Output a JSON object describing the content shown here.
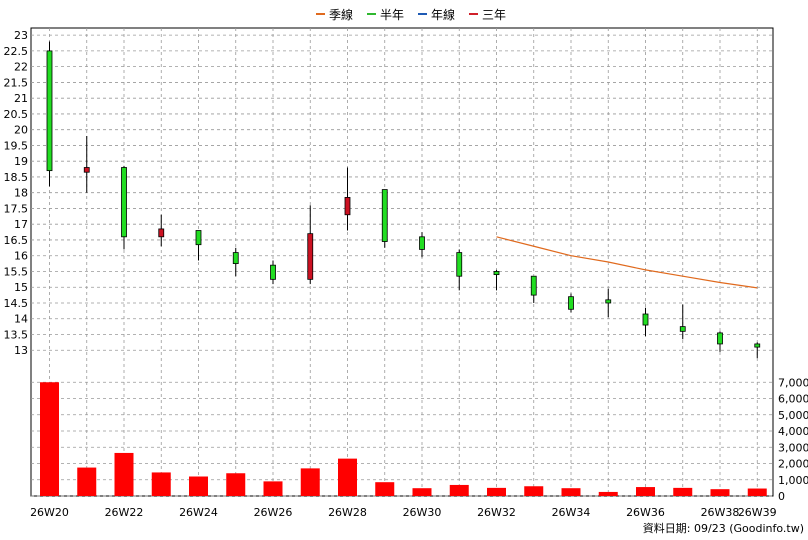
{
  "legend": [
    {
      "name": "季線",
      "color": "#e06a1e"
    },
    {
      "name": "半年",
      "color": "#2fb82f"
    },
    {
      "name": "年線",
      "color": "#1e5ab4"
    },
    {
      "name": "三年",
      "color": "#d0202a"
    }
  ],
  "source_text": "資料日期: 09/23  (Goodinfo.tw)",
  "chart_data": {
    "type": "candlestick",
    "grid": true,
    "legend_position": "top-center",
    "price_axis": {
      "ylim": [
        12.5,
        23.1
      ],
      "ticks": [
        "13",
        "13.5",
        "14",
        "14.5",
        "15",
        "15.5",
        "16",
        "16.5",
        "17",
        "17.5",
        "18",
        "18.5",
        "19",
        "19.5",
        "20",
        "20.5",
        "21",
        "21.5",
        "22",
        "22.5",
        "23"
      ]
    },
    "volume_axis": {
      "ylim": [
        0,
        7200
      ],
      "ticks": [
        "0",
        "1,000",
        "2,000",
        "3,000",
        "4,000",
        "5,000",
        "6,000",
        "7,000"
      ]
    },
    "x_tick_labels": [
      "26W20",
      "26W22",
      "26W24",
      "26W26",
      "26W28",
      "26W30",
      "26W32",
      "26W34",
      "26W36",
      "26W38",
      "26W39"
    ],
    "x_tick_positions": [
      0,
      2,
      4,
      6,
      8,
      10,
      12,
      14,
      16,
      18,
      19
    ],
    "candles": [
      {
        "week": "26W20",
        "open": 18.7,
        "high": 22.8,
        "low": 18.2,
        "close": 22.5,
        "color": "green"
      },
      {
        "week": "26W21",
        "open": 18.8,
        "high": 19.8,
        "low": 18.0,
        "close": 18.65,
        "color": "red"
      },
      {
        "week": "26W22",
        "open": 18.8,
        "high": 18.85,
        "low": 16.2,
        "close": 16.6,
        "color": "green"
      },
      {
        "week": "26W23",
        "open": 16.6,
        "high": 17.3,
        "low": 16.3,
        "close": 16.85,
        "color": "red"
      },
      {
        "week": "26W24",
        "open": 16.8,
        "high": 16.8,
        "low": 15.85,
        "close": 16.35,
        "color": "green"
      },
      {
        "week": "26W25",
        "open": 16.1,
        "high": 16.25,
        "low": 15.35,
        "close": 15.75,
        "color": "green"
      },
      {
        "week": "26W26",
        "open": 15.7,
        "high": 15.85,
        "low": 15.1,
        "close": 15.25,
        "color": "green"
      },
      {
        "week": "26W27",
        "open": 15.25,
        "high": 17.6,
        "low": 15.1,
        "close": 16.7,
        "color": "red"
      },
      {
        "week": "26W28",
        "open": 17.3,
        "high": 18.8,
        "low": 16.8,
        "close": 17.85,
        "color": "red"
      },
      {
        "week": "26W29",
        "open": 18.1,
        "high": 18.1,
        "low": 16.25,
        "close": 16.45,
        "color": "green"
      },
      {
        "week": "26W30",
        "open": 16.6,
        "high": 16.75,
        "low": 15.95,
        "close": 16.2,
        "color": "green"
      },
      {
        "week": "26W31",
        "open": 16.1,
        "high": 16.2,
        "low": 14.9,
        "close": 15.35,
        "color": "green"
      },
      {
        "week": "26W32",
        "open": 15.5,
        "high": 15.55,
        "low": 14.9,
        "close": 15.4,
        "color": "green"
      },
      {
        "week": "26W33",
        "open": 15.35,
        "high": 15.35,
        "low": 14.5,
        "close": 14.75,
        "color": "green"
      },
      {
        "week": "26W34",
        "open": 14.7,
        "high": 14.8,
        "low": 14.2,
        "close": 14.3,
        "color": "green"
      },
      {
        "week": "26W35",
        "open": 14.6,
        "high": 14.95,
        "low": 14.05,
        "close": 14.5,
        "color": "green"
      },
      {
        "week": "26W36",
        "open": 14.15,
        "high": 14.35,
        "low": 13.45,
        "close": 13.8,
        "color": "green"
      },
      {
        "week": "26W37",
        "open": 13.75,
        "high": 14.45,
        "low": 13.35,
        "close": 13.6,
        "color": "green"
      },
      {
        "week": "26W38",
        "open": 13.55,
        "high": 13.6,
        "low": 12.95,
        "close": 13.2,
        "color": "green"
      },
      {
        "week": "26W39",
        "open": 13.2,
        "high": 13.25,
        "low": 12.75,
        "close": 13.1,
        "color": "green"
      }
    ],
    "quarter_line": {
      "name": "季線",
      "weeks": [
        12,
        13,
        14,
        15,
        16,
        17,
        18,
        19
      ],
      "values": [
        16.6,
        16.3,
        16.0,
        15.8,
        15.55,
        15.35,
        15.15,
        14.98
      ]
    },
    "volume": {
      "color": "#ff0000",
      "values": [
        7000,
        1750,
        2650,
        1450,
        1200,
        1400,
        900,
        1700,
        2300,
        850,
        480,
        680,
        500,
        600,
        480,
        250,
        550,
        500,
        420,
        460
      ]
    }
  }
}
